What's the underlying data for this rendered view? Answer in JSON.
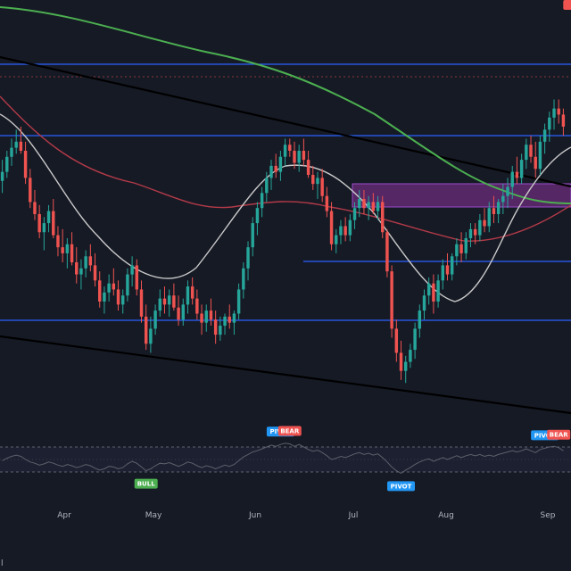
{
  "colors": {
    "background": "#161a25",
    "up": "#26a69a",
    "down": "#ef5350",
    "ma_long": "#4caf50",
    "ma_mid": "#b23a48",
    "ma_short": "#c9c9c9",
    "level_line": "#2962ff",
    "trend_line": "#000000",
    "zone_fill": "#6b2c7a",
    "zone_border": "#9c4dcc",
    "bull_badge": "#4caf50",
    "bear_badge": "#ef5350",
    "pivot_badge": "#2196f3",
    "osc_line": "#5d606b",
    "osc_band": "#787b86"
  },
  "chart_data": [
    {
      "type": "candlestick",
      "title": "",
      "xlabel": "",
      "ylabel": "",
      "x_ticks": [
        "Apr",
        "May",
        "Jun",
        "Jul",
        "Aug",
        "Sep"
      ],
      "y_range": [
        0,
        100
      ],
      "grid": false,
      "candles": [
        [
          69,
          76,
          65,
          72
        ],
        [
          72,
          79,
          70,
          77
        ],
        [
          77,
          83,
          74,
          80
        ],
        [
          80,
          86,
          78,
          82
        ],
        [
          82,
          87,
          78,
          79
        ],
        [
          79,
          82,
          68,
          70
        ],
        [
          70,
          73,
          60,
          62
        ],
        [
          62,
          66,
          56,
          58
        ],
        [
          58,
          61,
          50,
          52
        ],
        [
          52,
          57,
          46,
          55
        ],
        [
          55,
          61,
          52,
          59
        ],
        [
          59,
          63,
          50,
          51
        ],
        [
          51,
          54,
          44,
          47
        ],
        [
          47,
          53,
          42,
          45
        ],
        [
          45,
          50,
          40,
          48
        ],
        [
          48,
          52,
          41,
          42
        ],
        [
          42,
          47,
          35,
          38
        ],
        [
          38,
          43,
          33,
          40
        ],
        [
          40,
          46,
          37,
          44
        ],
        [
          44,
          48,
          39,
          41
        ],
        [
          41,
          45,
          34,
          36
        ],
        [
          36,
          39,
          27,
          29
        ],
        [
          29,
          34,
          25,
          32
        ],
        [
          32,
          38,
          29,
          35
        ],
        [
          35,
          40,
          31,
          33
        ],
        [
          33,
          36,
          26,
          28
        ],
        [
          28,
          33,
          25,
          31
        ],
        [
          31,
          40,
          29,
          38
        ],
        [
          38,
          44,
          34,
          41
        ],
        [
          41,
          43,
          31,
          33
        ],
        [
          33,
          36,
          22,
          24
        ],
        [
          24,
          28,
          13,
          15
        ],
        [
          15,
          24,
          12,
          20
        ],
        [
          20,
          28,
          18,
          26
        ],
        [
          26,
          33,
          24,
          30
        ],
        [
          30,
          34,
          25,
          28
        ],
        [
          28,
          33,
          24,
          31
        ],
        [
          31,
          35,
          26,
          27
        ],
        [
          27,
          31,
          21,
          23
        ],
        [
          23,
          30,
          21,
          28
        ],
        [
          28,
          36,
          25,
          34
        ],
        [
          34,
          37,
          28,
          30
        ],
        [
          30,
          33,
          23,
          25
        ],
        [
          25,
          28,
          18,
          22
        ],
        [
          22,
          28,
          19,
          26
        ],
        [
          26,
          30,
          21,
          23
        ],
        [
          23,
          26,
          15,
          18
        ],
        [
          18,
          24,
          16,
          21
        ],
        [
          21,
          25,
          18,
          24
        ],
        [
          24,
          28,
          20,
          22
        ],
        [
          22,
          26,
          18,
          25
        ],
        [
          25,
          35,
          23,
          33
        ],
        [
          33,
          42,
          30,
          40
        ],
        [
          40,
          49,
          36,
          47
        ],
        [
          47,
          57,
          44,
          55
        ],
        [
          55,
          62,
          51,
          60
        ],
        [
          60,
          67,
          57,
          65
        ],
        [
          65,
          72,
          62,
          70
        ],
        [
          70,
          76,
          66,
          74
        ],
        [
          74,
          78,
          70,
          72
        ],
        [
          72,
          79,
          69,
          77
        ],
        [
          77,
          83,
          74,
          81
        ],
        [
          81,
          83,
          77,
          79
        ],
        [
          79,
          82,
          73,
          75
        ],
        [
          75,
          81,
          72,
          79
        ],
        [
          79,
          83,
          74,
          76
        ],
        [
          76,
          79,
          70,
          71
        ],
        [
          71,
          74,
          66,
          68
        ],
        [
          68,
          72,
          63,
          70
        ],
        [
          70,
          73,
          62,
          64
        ],
        [
          64,
          67,
          57,
          59
        ],
        [
          59,
          62,
          46,
          48
        ],
        [
          48,
          53,
          45,
          51
        ],
        [
          51,
          56,
          48,
          54
        ],
        [
          54,
          57,
          49,
          51
        ],
        [
          51,
          58,
          49,
          56
        ],
        [
          56,
          62,
          53,
          60
        ],
        [
          60,
          66,
          57,
          63
        ],
        [
          63,
          66,
          58,
          60
        ],
        [
          60,
          64,
          56,
          62
        ],
        [
          62,
          65,
          58,
          59
        ],
        [
          59,
          64,
          56,
          62
        ],
        [
          62,
          64,
          50,
          52
        ],
        [
          52,
          53,
          37,
          39
        ],
        [
          39,
          41,
          17,
          20
        ],
        [
          20,
          23,
          9,
          12
        ],
        [
          12,
          16,
          3,
          6
        ],
        [
          6,
          11,
          2,
          9
        ],
        [
          9,
          15,
          7,
          13
        ],
        [
          13,
          22,
          10,
          20
        ],
        [
          20,
          28,
          17,
          26
        ],
        [
          26,
          33,
          23,
          31
        ],
        [
          31,
          37,
          28,
          35
        ],
        [
          35,
          38,
          25,
          29
        ],
        [
          29,
          38,
          27,
          36
        ],
        [
          36,
          43,
          33,
          41
        ],
        [
          41,
          45,
          36,
          38
        ],
        [
          38,
          45,
          36,
          44
        ],
        [
          44,
          50,
          41,
          48
        ],
        [
          48,
          52,
          42,
          45
        ],
        [
          45,
          52,
          43,
          50
        ],
        [
          50,
          55,
          47,
          53
        ],
        [
          53,
          55,
          48,
          51
        ],
        [
          51,
          58,
          49,
          56
        ],
        [
          56,
          60,
          52,
          54
        ],
        [
          54,
          62,
          52,
          60
        ],
        [
          60,
          64,
          55,
          58
        ],
        [
          58,
          63,
          55,
          62
        ],
        [
          62,
          68,
          58,
          64
        ],
        [
          64,
          70,
          60,
          67
        ],
        [
          67,
          74,
          63,
          72
        ],
        [
          72,
          77,
          68,
          70
        ],
        [
          70,
          78,
          68,
          76
        ],
        [
          76,
          83,
          73,
          81
        ],
        [
          81,
          84,
          75,
          77
        ],
        [
          77,
          82,
          70,
          73
        ],
        [
          73,
          84,
          71,
          82
        ],
        [
          82,
          88,
          78,
          86
        ],
        [
          86,
          92,
          82,
          90
        ],
        [
          90,
          96,
          86,
          93
        ],
        [
          93,
          96,
          88,
          91
        ],
        [
          91,
          93,
          84,
          87
        ]
      ]
    },
    {
      "type": "line",
      "title": "",
      "xlabel": "",
      "ylabel": "",
      "x_ticks": [
        "Apr",
        "May",
        "Jun",
        "Jul",
        "Aug",
        "Sep"
      ],
      "y_range": [
        0,
        100
      ],
      "overbought": 70,
      "oversold": 30,
      "values": [
        48,
        52,
        55,
        57,
        55,
        50,
        46,
        44,
        41,
        43,
        46,
        44,
        41,
        39,
        42,
        40,
        37,
        39,
        42,
        40,
        36,
        33,
        35,
        39,
        38,
        35,
        37,
        43,
        47,
        44,
        38,
        32,
        35,
        40,
        44,
        43,
        45,
        42,
        39,
        42,
        46,
        44,
        40,
        37,
        40,
        38,
        35,
        38,
        41,
        39,
        42,
        48,
        54,
        58,
        62,
        64,
        67,
        70,
        73,
        71,
        74,
        76,
        75,
        71,
        74,
        70,
        66,
        63,
        65,
        61,
        56,
        50,
        52,
        55,
        53,
        56,
        59,
        61,
        58,
        60,
        57,
        59,
        53,
        46,
        38,
        32,
        28,
        33,
        37,
        42,
        46,
        49,
        51,
        47,
        50,
        53,
        50,
        53,
        56,
        53,
        56,
        58,
        56,
        58,
        55,
        57,
        55,
        58,
        60,
        62,
        64,
        62,
        64,
        67,
        64,
        61,
        66,
        68,
        70,
        71,
        69,
        64
      ],
      "signals": [
        {
          "label": "BULL",
          "kind": "bull",
          "index": 31
        },
        {
          "label": "PIVOT",
          "kind": "pivot",
          "index": 60
        },
        {
          "label": "BEAR",
          "kind": "bear",
          "index": 62
        },
        {
          "label": "PIVOT",
          "kind": "pivot",
          "index": 86
        },
        {
          "label": "PIVOT",
          "kind": "pivot",
          "index": 117
        },
        {
          "label": "BEAR",
          "kind": "bear",
          "index": 120
        },
        {
          "label": "BEA",
          "kind": "bear",
          "index": 123
        }
      ]
    }
  ],
  "corner_glyph": "l"
}
